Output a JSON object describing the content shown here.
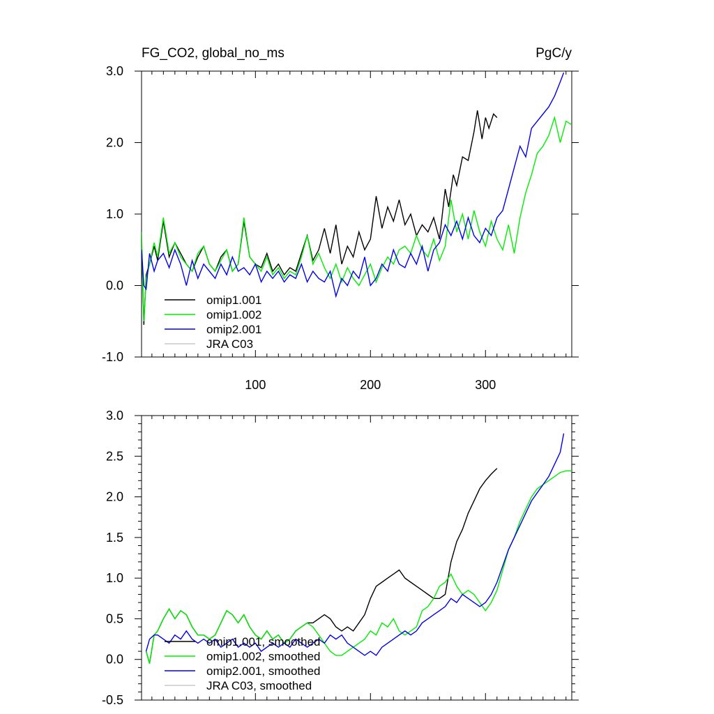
{
  "chart_data": [
    {
      "type": "line",
      "title": "FG_CO2, global_no_ms",
      "units": "PgC/y",
      "xlim": [
        1,
        375
      ],
      "ylim": [
        -1.0,
        3.0
      ],
      "xticks": [
        100,
        200,
        300
      ],
      "xtick_labels": [
        "100",
        "200",
        "300"
      ],
      "yticks": [
        -1.0,
        0.0,
        1.0,
        2.0,
        3.0
      ],
      "ytick_labels": [
        "-1.0",
        "0.0",
        "1.0",
        "2.0",
        "3.0"
      ],
      "grid": false,
      "legend_position": "bottom-left",
      "series": [
        {
          "name": "omip1.001",
          "color": "#000000",
          "x": [
            1,
            3,
            5,
            8,
            12,
            15,
            20,
            25,
            30,
            35,
            40,
            45,
            50,
            55,
            60,
            65,
            70,
            75,
            80,
            85,
            90,
            95,
            100,
            105,
            110,
            115,
            120,
            125,
            130,
            135,
            140,
            145,
            150,
            155,
            160,
            165,
            170,
            175,
            180,
            185,
            190,
            195,
            200,
            205,
            210,
            215,
            220,
            225,
            230,
            235,
            240,
            245,
            250,
            255,
            260,
            265,
            268,
            272,
            275,
            280,
            285,
            290,
            293,
            297,
            300,
            303,
            307,
            310
          ],
          "y": [
            0.6,
            -0.55,
            0.15,
            0.3,
            0.55,
            0.35,
            0.9,
            0.4,
            0.6,
            0.45,
            0.3,
            0.2,
            0.4,
            0.55,
            0.3,
            0.2,
            0.4,
            0.5,
            0.2,
            0.3,
            0.9,
            0.4,
            0.3,
            0.25,
            0.45,
            0.2,
            0.3,
            0.15,
            0.25,
            0.2,
            0.45,
            0.7,
            0.35,
            0.5,
            0.8,
            0.45,
            0.85,
            0.3,
            0.55,
            0.4,
            0.75,
            0.5,
            0.65,
            1.25,
            0.8,
            1.1,
            0.9,
            1.2,
            0.85,
            1.0,
            0.7,
            0.85,
            0.75,
            0.95,
            0.65,
            1.35,
            1.1,
            1.55,
            1.4,
            1.8,
            1.75,
            2.15,
            2.45,
            2.05,
            2.35,
            2.2,
            2.4,
            2.35
          ]
        },
        {
          "name": "omip1.002",
          "color": "#00ee00",
          "x": [
            1,
            3,
            5,
            8,
            12,
            15,
            20,
            25,
            30,
            35,
            40,
            45,
            50,
            55,
            60,
            65,
            70,
            75,
            80,
            85,
            90,
            95,
            100,
            105,
            110,
            115,
            120,
            125,
            130,
            135,
            140,
            145,
            150,
            155,
            160,
            165,
            170,
            175,
            180,
            185,
            190,
            195,
            200,
            205,
            210,
            215,
            220,
            225,
            230,
            235,
            240,
            245,
            250,
            255,
            260,
            265,
            270,
            275,
            280,
            285,
            290,
            295,
            300,
            305,
            310,
            315,
            320,
            325,
            330,
            335,
            340,
            345,
            350,
            355,
            360,
            365,
            370,
            375
          ],
          "y": [
            0.75,
            -0.5,
            0.1,
            0.3,
            0.6,
            0.4,
            0.95,
            0.45,
            0.6,
            0.4,
            0.3,
            0.2,
            0.45,
            0.55,
            0.3,
            0.2,
            0.35,
            0.5,
            0.2,
            0.3,
            0.95,
            0.4,
            0.3,
            0.2,
            0.4,
            0.15,
            0.25,
            0.1,
            0.2,
            0.15,
            0.4,
            0.7,
            0.3,
            0.45,
            0.25,
            0.1,
            0.3,
            0.05,
            0.25,
            0.1,
            0.0,
            0.15,
            0.3,
            0.05,
            0.25,
            0.4,
            0.3,
            0.5,
            0.55,
            0.45,
            0.7,
            0.5,
            0.4,
            0.65,
            0.35,
            0.55,
            1.2,
            0.75,
            1.0,
            0.65,
            1.05,
            0.75,
            0.55,
            0.9,
            0.65,
            0.5,
            0.85,
            0.45,
            0.95,
            1.3,
            1.55,
            1.85,
            1.95,
            2.1,
            2.35,
            2.0,
            2.3,
            2.25
          ]
        },
        {
          "name": "omip2.001",
          "color": "#0000ee",
          "x": [
            1,
            3,
            5,
            8,
            12,
            15,
            20,
            25,
            30,
            35,
            40,
            45,
            50,
            55,
            60,
            65,
            70,
            75,
            80,
            85,
            90,
            95,
            100,
            105,
            110,
            115,
            120,
            125,
            130,
            135,
            140,
            145,
            150,
            155,
            160,
            165,
            170,
            175,
            180,
            185,
            190,
            195,
            200,
            205,
            210,
            215,
            220,
            225,
            230,
            235,
            240,
            245,
            250,
            255,
            260,
            265,
            270,
            275,
            280,
            285,
            290,
            295,
            300,
            305,
            310,
            315,
            320,
            325,
            330,
            335,
            340,
            345,
            350,
            355,
            360,
            365,
            368
          ],
          "y": [
            0.5,
            0.0,
            -0.05,
            0.45,
            0.2,
            0.35,
            0.45,
            0.25,
            0.5,
            0.3,
            0.0,
            0.35,
            0.1,
            0.3,
            0.2,
            0.1,
            0.3,
            0.15,
            0.4,
            0.2,
            0.25,
            0.15,
            0.3,
            0.05,
            0.2,
            0.1,
            0.2,
            0.05,
            0.15,
            0.1,
            0.3,
            0.05,
            0.2,
            0.1,
            0.05,
            0.2,
            -0.15,
            0.1,
            0.0,
            0.2,
            0.1,
            0.4,
            0.0,
            0.1,
            0.3,
            0.2,
            0.5,
            0.3,
            0.25,
            0.45,
            0.3,
            0.55,
            0.2,
            0.5,
            0.6,
            0.85,
            0.7,
            0.9,
            0.65,
            0.95,
            0.7,
            0.6,
            0.8,
            0.7,
            0.95,
            1.05,
            1.35,
            1.65,
            1.95,
            1.8,
            2.2,
            2.3,
            2.4,
            2.5,
            2.65,
            2.85,
            2.98
          ]
        },
        {
          "name": "JRA C03",
          "color": "#c8c8c8",
          "x": [],
          "y": []
        }
      ]
    },
    {
      "type": "line",
      "xlim": [
        1,
        375
      ],
      "ylim": [
        -0.5,
        3.0
      ],
      "xticks": [
        100,
        200,
        300
      ],
      "xtick_labels": [],
      "yticks": [
        -0.5,
        0.0,
        0.5,
        1.0,
        1.5,
        2.0,
        2.5,
        3.0
      ],
      "ytick_labels": [
        "-0.5",
        "0.0",
        "0.5",
        "1.0",
        "1.5",
        "2.0",
        "2.5",
        "3.0"
      ],
      "grid": false,
      "legend_position": "bottom-left",
      "series": [
        {
          "name": "omip1.001, smoothed",
          "color": "#000000",
          "x": [
            5,
            8,
            12,
            15,
            20,
            25,
            30,
            35,
            40,
            45,
            50,
            55,
            60,
            65,
            70,
            75,
            80,
            85,
            90,
            95,
            100,
            105,
            110,
            115,
            120,
            125,
            130,
            135,
            140,
            145,
            150,
            155,
            160,
            165,
            170,
            175,
            180,
            185,
            190,
            195,
            200,
            205,
            210,
            215,
            220,
            225,
            230,
            235,
            240,
            245,
            250,
            255,
            260,
            265,
            270,
            275,
            280,
            285,
            290,
            295,
            300,
            305,
            310
          ],
          "y": [
            0.1,
            -0.05,
            0.3,
            0.35,
            0.5,
            0.62,
            0.5,
            0.6,
            0.55,
            0.4,
            0.3,
            0.3,
            0.25,
            0.3,
            0.45,
            0.6,
            0.55,
            0.45,
            0.55,
            0.4,
            0.3,
            0.25,
            0.35,
            0.25,
            0.3,
            0.2,
            0.25,
            0.35,
            0.4,
            0.45,
            0.45,
            0.5,
            0.55,
            0.5,
            0.4,
            0.35,
            0.4,
            0.35,
            0.45,
            0.55,
            0.75,
            0.9,
            0.95,
            1.0,
            1.05,
            1.1,
            1.0,
            0.95,
            0.9,
            0.85,
            0.8,
            0.75,
            0.75,
            0.8,
            1.2,
            1.45,
            1.6,
            1.8,
            1.95,
            2.1,
            2.2,
            2.28,
            2.35
          ]
        },
        {
          "name": "omip1.002, smoothed",
          "color": "#00ee00",
          "x": [
            5,
            8,
            12,
            15,
            20,
            25,
            30,
            35,
            40,
            45,
            50,
            55,
            60,
            65,
            70,
            75,
            80,
            85,
            90,
            95,
            100,
            105,
            110,
            115,
            120,
            125,
            130,
            135,
            140,
            145,
            150,
            155,
            160,
            165,
            170,
            175,
            180,
            185,
            190,
            195,
            200,
            205,
            210,
            215,
            220,
            225,
            230,
            235,
            240,
            245,
            250,
            255,
            260,
            265,
            270,
            275,
            280,
            285,
            290,
            295,
            300,
            305,
            310,
            315,
            320,
            325,
            330,
            335,
            340,
            345,
            350,
            355,
            360,
            365,
            370,
            375
          ],
          "y": [
            0.1,
            -0.05,
            0.3,
            0.35,
            0.5,
            0.62,
            0.5,
            0.6,
            0.55,
            0.4,
            0.3,
            0.3,
            0.25,
            0.3,
            0.45,
            0.6,
            0.55,
            0.45,
            0.55,
            0.4,
            0.3,
            0.25,
            0.35,
            0.25,
            0.3,
            0.2,
            0.25,
            0.35,
            0.4,
            0.45,
            0.4,
            0.3,
            0.2,
            0.1,
            0.05,
            0.05,
            0.1,
            0.15,
            0.2,
            0.25,
            0.35,
            0.3,
            0.45,
            0.4,
            0.5,
            0.35,
            0.3,
            0.35,
            0.4,
            0.6,
            0.65,
            0.75,
            0.9,
            0.95,
            1.05,
            0.9,
            0.8,
            0.85,
            0.8,
            0.7,
            0.6,
            0.7,
            0.85,
            1.1,
            1.35,
            1.5,
            1.7,
            1.85,
            2.0,
            2.1,
            2.15,
            2.2,
            2.25,
            2.3,
            2.32,
            2.32
          ]
        },
        {
          "name": "omip2.001, smoothed",
          "color": "#0000ee",
          "x": [
            5,
            8,
            12,
            15,
            20,
            25,
            30,
            35,
            40,
            45,
            50,
            55,
            60,
            65,
            70,
            75,
            80,
            85,
            90,
            95,
            100,
            105,
            110,
            115,
            120,
            125,
            130,
            135,
            140,
            145,
            150,
            155,
            160,
            165,
            170,
            175,
            180,
            185,
            190,
            195,
            200,
            205,
            210,
            215,
            220,
            225,
            230,
            235,
            240,
            245,
            250,
            255,
            260,
            265,
            270,
            275,
            280,
            285,
            290,
            295,
            300,
            305,
            310,
            315,
            320,
            325,
            330,
            335,
            340,
            345,
            350,
            355,
            360,
            365,
            368
          ],
          "y": [
            0.1,
            0.25,
            0.3,
            0.3,
            0.25,
            0.2,
            0.3,
            0.25,
            0.35,
            0.25,
            0.2,
            0.25,
            0.2,
            0.25,
            0.15,
            0.2,
            0.25,
            0.15,
            0.2,
            0.15,
            0.2,
            0.1,
            0.15,
            0.2,
            0.15,
            0.2,
            0.15,
            0.25,
            0.2,
            0.15,
            0.2,
            0.25,
            0.2,
            0.3,
            0.25,
            0.3,
            0.2,
            0.15,
            0.1,
            0.05,
            0.1,
            0.05,
            0.15,
            0.2,
            0.25,
            0.3,
            0.35,
            0.3,
            0.35,
            0.45,
            0.5,
            0.55,
            0.6,
            0.65,
            0.75,
            0.7,
            0.8,
            0.75,
            0.7,
            0.65,
            0.7,
            0.8,
            0.95,
            1.15,
            1.35,
            1.5,
            1.65,
            1.8,
            1.95,
            2.05,
            2.15,
            2.25,
            2.4,
            2.55,
            2.78
          ]
        },
        {
          "name": "JRA C03, smoothed",
          "color": "#c8c8c8",
          "x": [],
          "y": []
        }
      ]
    }
  ]
}
